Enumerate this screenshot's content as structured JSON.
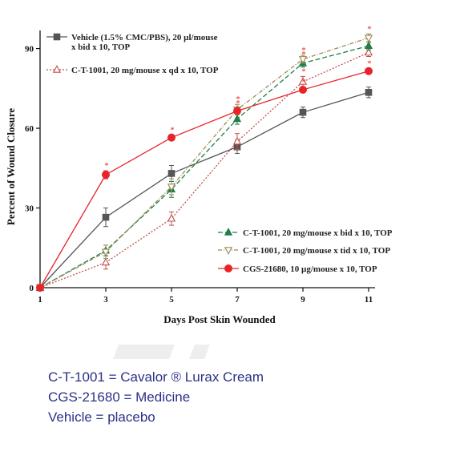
{
  "chart_data": {
    "type": "line",
    "xlabel": "Days Post Skin Wounded",
    "ylabel": "Percent of Wound Closure",
    "x": [
      1,
      3,
      5,
      7,
      9,
      11
    ],
    "xticks": [
      "1",
      "3",
      "5",
      "7",
      "9",
      "11"
    ],
    "yticks": [
      "0",
      "30",
      "60",
      "90"
    ],
    "xlim": [
      1,
      11
    ],
    "ylim": [
      0,
      95
    ],
    "grid": false,
    "legend_position": "top-left and bottom-right",
    "series": [
      {
        "name": "Vehicle (1.5% CMC/PBS), 20 µl/mouse x bid x 10, TOP",
        "legend_lines": [
          "Vehicle (1.5% CMC/PBS), 20 µl/mouse",
          "x bid x 10, TOP"
        ],
        "values": [
          0,
          26.5,
          43,
          53,
          66,
          73.5
        ],
        "errors": [
          0,
          3.5,
          3,
          2.5,
          2,
          2
        ],
        "color": "#555555",
        "marker": "square",
        "dash": "solid",
        "significance": [
          false,
          false,
          false,
          false,
          false,
          false
        ]
      },
      {
        "name": "C-T-1001, 20 mg/mouse x qd x 10, TOP",
        "legend_lines": [
          "C-T-1001, 20 mg/mouse x qd x 10, TOP"
        ],
        "values": [
          0,
          9.5,
          26,
          55,
          77.5,
          88.5
        ],
        "errors": [
          0,
          2.5,
          2.5,
          3,
          2,
          1.5
        ],
        "color": "#c0504d",
        "marker": "triangle-up-open",
        "dash": "dotted",
        "significance": [
          false,
          false,
          false,
          false,
          true,
          true
        ]
      },
      {
        "name": "C-T-1001, 20 mg/mouse x bid x 10, TOP",
        "legend_lines": [
          "C-T-1001, 20 mg/mouse x bid x 10, TOP"
        ],
        "values": [
          0,
          14,
          37,
          63.5,
          84.5,
          91
        ],
        "errors": [
          0,
          2,
          3,
          2,
          1.5,
          1.5
        ],
        "color": "#1e7e46",
        "marker": "triangle-up",
        "dash": "dashed",
        "significance": [
          false,
          false,
          false,
          true,
          true,
          true
        ]
      },
      {
        "name": "C-T-1001, 20 mg/mouse x tid x 10, TOP",
        "legend_lines": [
          "C-T-1001, 20 mg/mouse x tid x 10, TOP"
        ],
        "values": [
          0,
          13.5,
          38,
          67,
          86,
          94
        ],
        "errors": [
          0,
          2.5,
          3,
          2,
          1.5,
          1.5
        ],
        "color": "#998a55",
        "marker": "triangle-down-open",
        "dash": "dashdot",
        "significance": [
          false,
          false,
          false,
          true,
          true,
          true
        ]
      },
      {
        "name": "CGS-21680, 10 µg/mouse x 10, TOP",
        "legend_lines": [
          "CGS-21680, 10 µg/mouse x 10, TOP"
        ],
        "values": [
          0,
          42.5,
          56.5,
          66.5,
          74.5,
          81.5
        ],
        "errors": [
          0,
          1.5,
          1,
          1,
          1,
          1
        ],
        "color": "#e8232a",
        "marker": "circle",
        "dash": "solid",
        "significance": [
          false,
          true,
          true,
          true,
          true,
          true
        ]
      }
    ],
    "significance_symbol": "*"
  },
  "caption": {
    "line1": "C-T-1001 = Cavalor ® Lurax Cream",
    "line2": "CGS-21680 = Medicine",
    "line3": "Vehicle = placebo"
  }
}
